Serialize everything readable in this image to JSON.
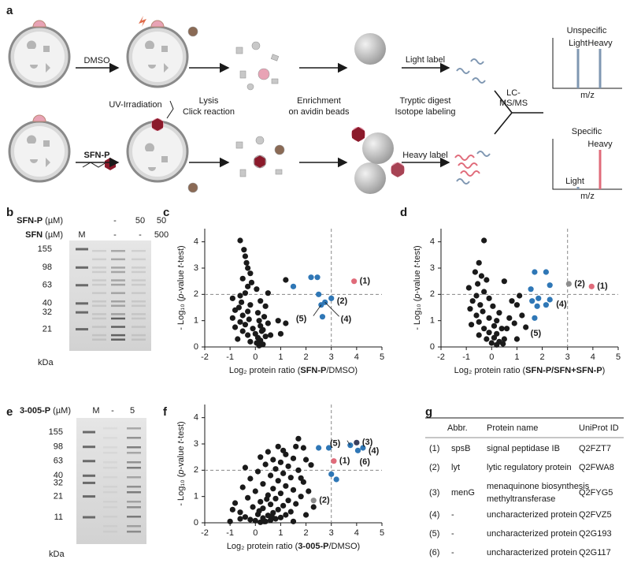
{
  "workflow": {
    "panel": "a",
    "top_treatment": "DMSO",
    "bottom_treatment": "SFN-P",
    "steps": [
      "UV-Irradiation",
      "Lysis",
      "Click reaction",
      "Enrichment",
      "on avidin beads",
      "Tryptic digest",
      "Isotope labeling"
    ],
    "light_label": "Light label",
    "heavy_label": "Heavy label",
    "ms": [
      "LC-",
      "MS/MS"
    ],
    "unspecific": {
      "title": "Unspecific",
      "light": "Light",
      "heavy": "Heavy",
      "axis": "m/z"
    },
    "specific": {
      "title": "Specific",
      "light": "Light",
      "heavy": "Heavy",
      "axis": "m/z"
    }
  },
  "gels": [
    {
      "panel": "b",
      "rows": [
        {
          "label": [
            "SFN-P",
            " (µM)"
          ],
          "lanes": [
            null,
            "-",
            "50",
            "50"
          ]
        },
        {
          "label": [
            "SFN",
            " (µM)"
          ],
          "lanes": [
            "M",
            "-",
            "-",
            "500"
          ]
        }
      ],
      "markers": [
        155,
        98,
        63,
        40,
        32,
        21
      ],
      "unit": "kDa"
    },
    {
      "panel": "e",
      "rows": [
        {
          "label": [
            "3-005-P",
            " (µM)"
          ],
          "lanes": [
            "M",
            "-",
            "5"
          ]
        }
      ],
      "markers": [
        155,
        98,
        63,
        40,
        32,
        21,
        11
      ],
      "unit": "kDa"
    }
  ],
  "chart_data": [
    {
      "type": "scatter",
      "panel": "c",
      "x_label": [
        "Log₂ protein ratio (",
        "SFN-P",
        "/DMSO)"
      ],
      "y_label": [
        "- Log₁₀ (",
        "p",
        "-value ",
        "t",
        "-test)"
      ],
      "xlim": [
        -2,
        5
      ],
      "ylim": [
        0,
        4.5
      ],
      "xticks": [
        -2,
        -1,
        0,
        1,
        2,
        3,
        4,
        5
      ],
      "yticks": [
        0,
        1,
        2,
        3,
        4
      ],
      "threshold_x": 3,
      "threshold_y": 2,
      "series": [
        {
          "color": "#1a1a1a",
          "x": [
            -0.6,
            -0.45,
            -0.4,
            -0.35,
            -0.3,
            -0.2,
            -0.5,
            -0.15,
            -0.3,
            0.05,
            -0.4,
            -0.6,
            -0.9,
            -0.55,
            -0.2,
            -0.65,
            -0.8,
            -0.3,
            0.1,
            -0.5,
            -0.9,
            -0.25,
            0.15,
            -0.6,
            -0.4,
            0.2,
            -0.8,
            -0.1,
            0.3,
            -0.5,
            0.0,
            -0.3,
            0.4,
            0.1,
            -0.7,
            0.2,
            0.05,
            0.3,
            0.15,
            -0.2,
            0.5,
            0.5,
            0.9,
            1.2,
            1.0,
            0.6,
            0.2,
            0.4,
            1.2,
            0.35,
            0.25
          ],
          "values": [
            4.05,
            3.7,
            3.45,
            3.2,
            3.0,
            2.8,
            2.6,
            2.45,
            2.3,
            2.2,
            2.05,
            1.95,
            1.85,
            1.7,
            1.6,
            1.5,
            1.4,
            1.35,
            1.3,
            1.2,
            1.1,
            1.05,
            1.0,
            0.95,
            0.85,
            0.8,
            0.75,
            0.7,
            0.65,
            0.6,
            0.5,
            0.45,
            0.4,
            0.35,
            0.3,
            0.25,
            0.15,
            0.1,
            0.05,
            0.2,
            2.05,
            0.9,
            1.0,
            0.9,
            0.5,
            0.45,
            1.75,
            1.55,
            2.55,
            1.15,
            0.6
          ]
        },
        {
          "color": "#2f77b6",
          "x": [
            1.5,
            2.2,
            2.45,
            2.5,
            2.6,
            2.75,
            2.65,
            3.0
          ],
          "values": [
            2.3,
            2.65,
            2.65,
            2.0,
            1.6,
            1.7,
            1.15,
            1.85
          ],
          "point_labels": [
            null,
            null,
            null,
            null,
            "(5)",
            "(4)",
            null,
            "(2)"
          ]
        },
        {
          "color": "#e06b7a",
          "x": [
            3.9
          ],
          "values": [
            2.5
          ],
          "point_labels": [
            "(1)"
          ]
        }
      ]
    },
    {
      "type": "scatter",
      "panel": "d",
      "x_label": [
        "Log₂ protein ratio (",
        "SFN-P/SFN+SFN-P",
        ")"
      ],
      "y_label": [
        "- Log₁₀ (",
        "p",
        "-value ",
        "t",
        "-test)"
      ],
      "xlim": [
        -2,
        5
      ],
      "ylim": [
        0,
        4.5
      ],
      "xticks": [
        -2,
        -1,
        0,
        1,
        2,
        3,
        4,
        5
      ],
      "yticks": [
        0,
        1,
        2,
        3,
        4
      ],
      "threshold_x": 3,
      "threshold_y": 2,
      "series": [
        {
          "color": "#1a1a1a",
          "x": [
            -0.3,
            -0.5,
            -0.65,
            -0.4,
            -0.2,
            -0.55,
            -0.9,
            -0.3,
            0.5,
            -0.6,
            -0.1,
            -0.75,
            -0.45,
            0.05,
            -0.85,
            -0.35,
            0.3,
            -0.6,
            -0.1,
            0.2,
            -0.5,
            -0.8,
            0.1,
            -0.3,
            0.4,
            -0.1,
            0.2,
            -0.5,
            0.1,
            0.5,
            -0.2,
            0.3,
            0.0,
            0.2,
            0.45,
            0.8,
            1.1,
            1.0,
            0.9,
            0.6,
            1.0,
            0.7,
            1.2
          ],
          "values": [
            4.05,
            3.2,
            2.85,
            2.7,
            2.55,
            2.4,
            2.25,
            2.1,
            2.5,
            1.95,
            1.85,
            1.75,
            1.6,
            1.55,
            1.45,
            1.35,
            1.3,
            1.2,
            1.1,
            1.0,
            0.95,
            0.85,
            0.8,
            0.7,
            0.7,
            0.55,
            0.5,
            0.45,
            0.35,
            0.3,
            0.3,
            0.2,
            0.15,
            0.08,
            0.12,
            1.75,
            1.95,
            1.6,
            0.9,
            0.7,
            0.3,
            1.1,
            1.2
          ]
        },
        {
          "color": "#1a1a1a",
          "x": [
            1.35
          ],
          "values": [
            0.75
          ],
          "point_labels": [
            "(5)"
          ]
        },
        {
          "color": "#2f77b6",
          "x": [
            1.55,
            1.7,
            2.15,
            2.3,
            1.6,
            1.85,
            2.15,
            2.3,
            1.8,
            1.7
          ],
          "values": [
            2.2,
            2.85,
            2.85,
            2.35,
            1.75,
            1.85,
            1.6,
            1.8,
            1.55,
            1.1
          ],
          "point_labels": [
            null,
            null,
            null,
            null,
            null,
            null,
            null,
            "(4)",
            null,
            null
          ]
        },
        {
          "color": "#8c8c8c",
          "x": [
            3.05
          ],
          "values": [
            2.4
          ],
          "point_labels": [
            "(2)"
          ]
        },
        {
          "color": "#e06b7a",
          "x": [
            3.95
          ],
          "values": [
            2.3
          ],
          "point_labels": [
            "(1)"
          ]
        }
      ]
    },
    {
      "type": "scatter",
      "panel": "f",
      "x_label": [
        "Log₂ protein ratio (",
        "3-005-P",
        "/DMSO)"
      ],
      "y_label": [
        "- Log₁₀ (",
        "p",
        "-value ",
        "t",
        "-test)"
      ],
      "xlim": [
        -2,
        5
      ],
      "ylim": [
        0,
        4.5
      ],
      "xticks": [
        -2,
        -1,
        0,
        1,
        2,
        3,
        4,
        5
      ],
      "yticks": [
        0,
        1,
        2,
        3,
        4
      ],
      "threshold_x": 3,
      "threshold_y": 2,
      "series": [
        {
          "color": "#1a1a1a",
          "x": [
            0.2,
            0.4,
            0.0,
            0.6,
            -0.2,
            0.8,
            0.3,
            1.0,
            -0.4,
            0.5,
            1.2,
            0.1,
            0.7,
            -0.6,
            1.4,
            0.9,
            0.3,
            -0.1,
            1.1,
            0.6,
            1.6,
            -0.8,
            0.2,
            1.3,
            0.8,
            -0.3,
            1.8,
            0.5,
            1.0,
            0.0,
            1.5,
            0.7,
            -0.5,
            1.2,
            0.3,
            1.9,
            0.9,
            -0.2,
            1.4,
            0.6,
            1.1,
            0.1,
            1.7,
            0.8,
            -0.4,
            1.3,
            0.4,
            1.0,
            2.2,
            0.7,
            1.5,
            0.2,
            1.2,
            1.1,
            0.9,
            1.7,
            1.9,
            0.5,
            -0.6,
            -0.9,
            -1.0,
            1.5,
            2.0,
            2.3,
            2.1,
            1.8,
            0.35,
            0.65,
            0.15,
            0.45,
            2.0,
            1.6
          ],
          "values": [
            0.02,
            0.05,
            0.08,
            0.1,
            0.12,
            0.15,
            0.18,
            0.2,
            0.22,
            0.28,
            0.3,
            0.32,
            0.38,
            0.4,
            0.42,
            0.5,
            0.55,
            0.6,
            0.65,
            0.7,
            0.72,
            0.75,
            0.8,
            0.85,
            0.92,
            0.95,
            1.0,
            1.05,
            1.12,
            1.2,
            1.25,
            1.3,
            1.35,
            1.4,
            1.48,
            1.55,
            1.6,
            1.68,
            1.72,
            1.8,
            1.88,
            1.95,
            2.0,
            2.05,
            2.1,
            2.15,
            2.22,
            2.3,
            2.2,
            2.4,
            2.45,
            2.5,
            2.6,
            2.75,
            2.9,
            3.2,
            2.85,
            2.7,
            0.15,
            0.5,
            0.05,
            0.05,
            0.3,
            0.6,
            1.2,
            1.7,
            0.05,
            0.25,
            0.45,
            0.9,
            2.4,
            2.9
          ]
        },
        {
          "color": "#2f77b6",
          "x": [
            2.5,
            2.9,
            3.0,
            3.2,
            3.75,
            4.25,
            4.05
          ],
          "values": [
            2.85,
            2.85,
            1.85,
            1.65,
            2.95,
            2.85,
            2.75
          ],
          "point_labels": [
            null,
            null,
            null,
            null,
            "(5)",
            "(4)",
            "(6)"
          ]
        },
        {
          "color": "#8c8c8c",
          "x": [
            2.3
          ],
          "values": [
            0.85
          ],
          "point_labels": [
            "(2)"
          ]
        },
        {
          "color": "#e06b7a",
          "x": [
            3.1
          ],
          "values": [
            2.35
          ],
          "point_labels": [
            "(1)"
          ]
        },
        {
          "color": "#3a3f5c",
          "x": [
            4.0
          ],
          "values": [
            3.05
          ],
          "point_labels": [
            "(3)"
          ]
        }
      ]
    }
  ],
  "table": {
    "panel": "g",
    "header": [
      "Abbr.",
      "Protein name",
      "UniProt ID"
    ],
    "rows": [
      [
        "(1)",
        "spsB",
        [
          "signal peptidase IB"
        ],
        "Q2FZT7"
      ],
      [
        "(2)",
        "lyt",
        [
          "lytic regulatory protein"
        ],
        "Q2FWA8"
      ],
      [
        "(3)",
        "menG",
        [
          "menaquinone biosynthesis",
          "methyltransferase"
        ],
        "Q2FYG5"
      ],
      [
        "(4)",
        "-",
        [
          "uncharacterized protein"
        ],
        "Q2FVZ5"
      ],
      [
        "(5)",
        "-",
        [
          "uncharacterized protein"
        ],
        "Q2G193"
      ],
      [
        "(6)",
        "-",
        [
          "uncharacterized protein"
        ],
        "Q2G117"
      ]
    ]
  }
}
